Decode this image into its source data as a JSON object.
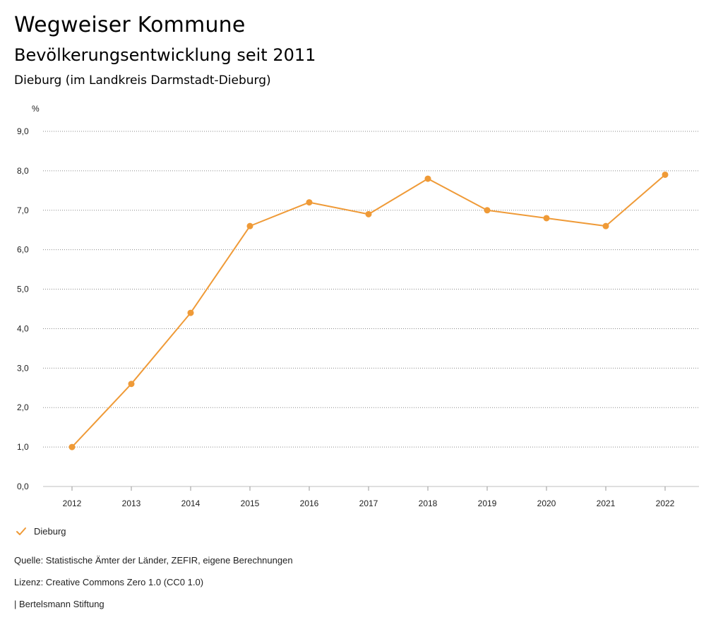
{
  "header": {
    "title": "Wegweiser Kommune",
    "subtitle": "Bevölkerungsentwicklung seit 2011",
    "region": "Dieburg (im Landkreis Darmstadt-Dieburg)"
  },
  "chart_data": {
    "type": "line",
    "title": "Bevölkerungsentwicklung seit 2011",
    "ylabel": "%",
    "xlabel": "",
    "ylim": [
      0,
      9
    ],
    "yticks": [
      "0,0",
      "1,0",
      "2,0",
      "3,0",
      "4,0",
      "5,0",
      "6,0",
      "7,0",
      "8,0",
      "9,0"
    ],
    "categories": [
      "2012",
      "2013",
      "2014",
      "2015",
      "2016",
      "2017",
      "2018",
      "2019",
      "2020",
      "2021",
      "2022"
    ],
    "series": [
      {
        "name": "Dieburg",
        "color": "#ef9a37",
        "values": [
          1.0,
          2.6,
          4.4,
          6.6,
          7.2,
          6.9,
          7.8,
          7.0,
          6.8,
          6.6,
          7.9
        ]
      }
    ],
    "grid": "horizontal-dotted",
    "legend": "bottom-left"
  },
  "legend": {
    "label": "Dieburg",
    "icon": "check-icon",
    "color": "#ef9a37"
  },
  "footer": {
    "source": "Quelle: Statistische Ämter der Länder, ZEFIR, eigene Berechnungen",
    "license": "Lizenz: Creative Commons Zero 1.0 (CC0 1.0)",
    "publisher": "| Bertelsmann Stiftung"
  }
}
